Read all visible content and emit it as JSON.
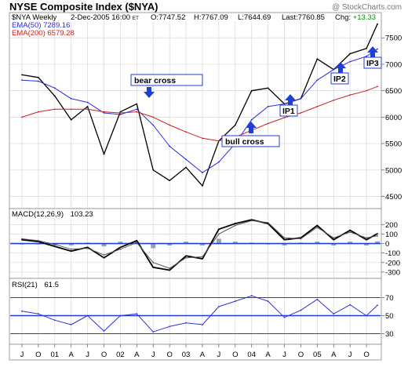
{
  "header": {
    "title": "NYSE Composite Index ($NYA)",
    "watermark": "@ StockCharts.com",
    "symbol": "$NYA Weekly",
    "date": "2-Dec-2005 16:00",
    "tz": "ET",
    "open": "O:7747.52",
    "high": "H:7767.09",
    "low": "L:7644.69",
    "last": "Last:7760.85",
    "change_label": "Chg:",
    "change_value": "+13.33"
  },
  "legend": {
    "ema50": "EMA(50) 7289.16",
    "ema200": "EMA(200) 6579.28"
  },
  "colors": {
    "price": "#000000",
    "ema50": "#2a2ae0",
    "ema200": "#cc2020",
    "marker": "#1f3fd6",
    "grid": "#d8d8d8",
    "change_up": "#009900",
    "rsi_line": "#3030e0"
  },
  "annotations": {
    "bear_cross": "bear cross",
    "bull_cross": "bull cross",
    "ip1": "IP1",
    "ip2": "IP2",
    "ip3": "IP3"
  },
  "macd": {
    "label": "MACD(12,26,9)",
    "value": "103.23"
  },
  "rsi": {
    "label": "RSI(21)",
    "value": "61.5"
  },
  "x_axis": {
    "labels": [
      "J",
      "O",
      "01",
      "A",
      "J",
      "O",
      "02",
      "A",
      "J",
      "O",
      "03",
      "A",
      "J",
      "O",
      "04",
      "A",
      "J",
      "O",
      "05",
      "A",
      "J",
      "O"
    ]
  },
  "chart_data": [
    {
      "type": "line",
      "title": "NYSE Composite Index ($NYA)",
      "period": "Weekly",
      "ylim": [
        4300,
        7800
      ],
      "yticks": [
        4500,
        5000,
        5500,
        6000,
        6500,
        7000,
        7500
      ],
      "x": [
        "2000-07",
        "2000-10",
        "2001-01",
        "2001-04",
        "2001-07",
        "2001-10",
        "2002-01",
        "2002-04",
        "2002-07",
        "2002-10",
        "2003-01",
        "2003-04",
        "2003-07",
        "2003-10",
        "2004-01",
        "2004-04",
        "2004-07",
        "2004-10",
        "2005-01",
        "2005-04",
        "2005-07",
        "2005-10",
        "2005-12"
      ],
      "series": [
        {
          "name": "$NYA Weekly",
          "values": [
            6800,
            6750,
            6400,
            5950,
            6200,
            5300,
            6100,
            6250,
            5000,
            4800,
            5050,
            4700,
            5550,
            5850,
            6500,
            6550,
            6250,
            6350,
            7100,
            6900,
            7200,
            7300,
            7760
          ]
        },
        {
          "name": "EMA(50)",
          "values": [
            6700,
            6680,
            6550,
            6350,
            6280,
            6080,
            6050,
            6150,
            5850,
            5450,
            5200,
            4950,
            5150,
            5500,
            5950,
            6200,
            6250,
            6350,
            6700,
            6900,
            7050,
            7150,
            7289
          ]
        },
        {
          "name": "EMA(200)",
          "values": [
            6000,
            6100,
            6150,
            6150,
            6150,
            6100,
            6080,
            6100,
            6000,
            5850,
            5720,
            5600,
            5550,
            5620,
            5750,
            5880,
            5990,
            6080,
            6200,
            6320,
            6420,
            6500,
            6579
          ]
        }
      ],
      "annotations": [
        {
          "label": "bear cross",
          "date": "2002-05"
        },
        {
          "label": "bull cross",
          "date": "2003-09"
        },
        {
          "label": "IP1",
          "date": "2004-08"
        },
        {
          "label": "IP2",
          "date": "2005-04"
        },
        {
          "label": "IP3",
          "date": "2005-10"
        }
      ]
    },
    {
      "type": "line",
      "title": "MACD(12,26,9)",
      "ylim": [
        -350,
        260
      ],
      "yticks": [
        -300,
        -200,
        -100,
        0,
        100,
        200
      ],
      "x": [
        "2000-07",
        "2000-10",
        "2001-01",
        "2001-04",
        "2001-07",
        "2001-10",
        "2002-01",
        "2002-04",
        "2002-07",
        "2002-10",
        "2003-01",
        "2003-04",
        "2003-07",
        "2003-10",
        "2004-01",
        "2004-04",
        "2004-07",
        "2004-10",
        "2005-01",
        "2005-04",
        "2005-07",
        "2005-10",
        "2005-12"
      ],
      "series": [
        {
          "name": "MACD",
          "values": [
            40,
            20,
            -30,
            -80,
            -40,
            -150,
            -40,
            30,
            -250,
            -280,
            -130,
            -160,
            150,
            210,
            250,
            210,
            40,
            60,
            190,
            40,
            140,
            40,
            103
          ]
        },
        {
          "name": "Signal",
          "values": [
            50,
            30,
            -10,
            -60,
            -50,
            -120,
            -60,
            10,
            -200,
            -260,
            -150,
            -140,
            100,
            190,
            240,
            220,
            60,
            50,
            170,
            60,
            120,
            60,
            80
          ]
        }
      ]
    },
    {
      "type": "line",
      "title": "RSI(21)",
      "ylim": [
        20,
        80
      ],
      "yticks": [
        30,
        50,
        70
      ],
      "x": [
        "2000-07",
        "2000-10",
        "2001-01",
        "2001-04",
        "2001-07",
        "2001-10",
        "2002-01",
        "2002-04",
        "2002-07",
        "2002-10",
        "2003-01",
        "2003-04",
        "2003-07",
        "2003-10",
        "2004-01",
        "2004-04",
        "2004-07",
        "2004-10",
        "2005-01",
        "2005-04",
        "2005-07",
        "2005-10",
        "2005-12"
      ],
      "series": [
        {
          "name": "RSI(21)",
          "values": [
            55,
            52,
            45,
            40,
            50,
            33,
            50,
            52,
            32,
            38,
            42,
            40,
            60,
            66,
            72,
            66,
            48,
            56,
            68,
            52,
            62,
            50,
            61.5
          ]
        }
      ]
    }
  ]
}
